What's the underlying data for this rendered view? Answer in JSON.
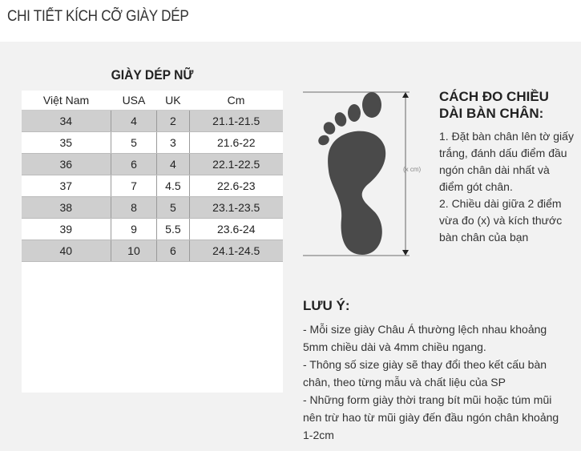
{
  "page_title": "CHI TIẾT KÍCH CỠ GIÀY DÉP",
  "table": {
    "title": "GIÀY DÉP NỮ",
    "headers": [
      "Việt Nam",
      "USA",
      "UK",
      "Cm"
    ],
    "rows": [
      [
        "34",
        "4",
        "2",
        "21.1-21.5"
      ],
      [
        "35",
        "5",
        "3",
        "21.6-22"
      ],
      [
        "36",
        "6",
        "4",
        "22.1-22.5"
      ],
      [
        "37",
        "7",
        "4.5",
        "22.6-23"
      ],
      [
        "38",
        "8",
        "5",
        "23.1-23.5"
      ],
      [
        "39",
        "9",
        "5.5",
        "23.6-24"
      ],
      [
        "40",
        "10",
        "6",
        "24.1-24.5"
      ]
    ]
  },
  "diagram": {
    "measure_label": "(x cm)",
    "icon": "footprint-icon"
  },
  "how_to": {
    "heading": "CÁCH ĐO CHIỀU DÀI BÀN CHÂN:",
    "steps": [
      "1. Đặt bàn chân lên tờ giấy trắng, đánh dấu điểm đầu ngón chân dài nhất và điểm gót chân.",
      "2. Chiều dài giữa 2 điểm vừa đo (x) và kích thước bàn chân của bạn"
    ]
  },
  "notes": {
    "heading": "LƯU Ý:",
    "items": [
      "- Mỗi size giày Châu Á thường lệch nhau khoảng 5mm chiều dài và 4mm chiều ngang.",
      "- Thông số size giày sẽ thay đổi theo kết cấu bàn chân, theo từng mẫu và chất liệu của SP",
      "- Những form giày thời trang bít mũi hoặc túm mũi nên trừ hao từ mũi giày đến đầu ngón chân khoảng 1-2cm"
    ]
  },
  "colors": {
    "panel_bg": "#f2f2f2",
    "row_shade": "#cfcfcf",
    "foot": "#4a4a4a"
  }
}
